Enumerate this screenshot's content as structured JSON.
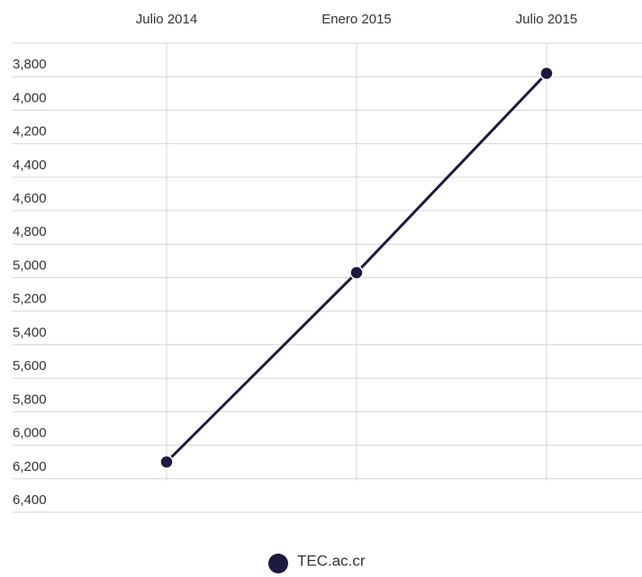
{
  "chart_data": {
    "type": "line",
    "categories": [
      "Julio 2014",
      "Enero 2015",
      "Julio 2015"
    ],
    "series": [
      {
        "name": "TEC.ac.cr",
        "color": "#1c1a40",
        "values": [
          6170,
          5040,
          3850
        ]
      }
    ],
    "ylim": [
      3670,
      6400
    ],
    "y_inverted": true,
    "yticks": [
      {
        "value": 3800,
        "label": "3,800"
      },
      {
        "value": 4000,
        "label": "4,000"
      },
      {
        "value": 4200,
        "label": "4,200"
      },
      {
        "value": 4400,
        "label": "4,400"
      },
      {
        "value": 4600,
        "label": "4,600"
      },
      {
        "value": 4800,
        "label": "4,800"
      },
      {
        "value": 5000,
        "label": "5,000"
      },
      {
        "value": 5200,
        "label": "5,200"
      },
      {
        "value": 5400,
        "label": "5,400"
      },
      {
        "value": 5600,
        "label": "5,600"
      },
      {
        "value": 5800,
        "label": "5,800"
      },
      {
        "value": 6000,
        "label": "6,000"
      },
      {
        "value": 6200,
        "label": "6,200"
      },
      {
        "value": 6400,
        "label": "6,400"
      }
    ],
    "grid": true
  }
}
